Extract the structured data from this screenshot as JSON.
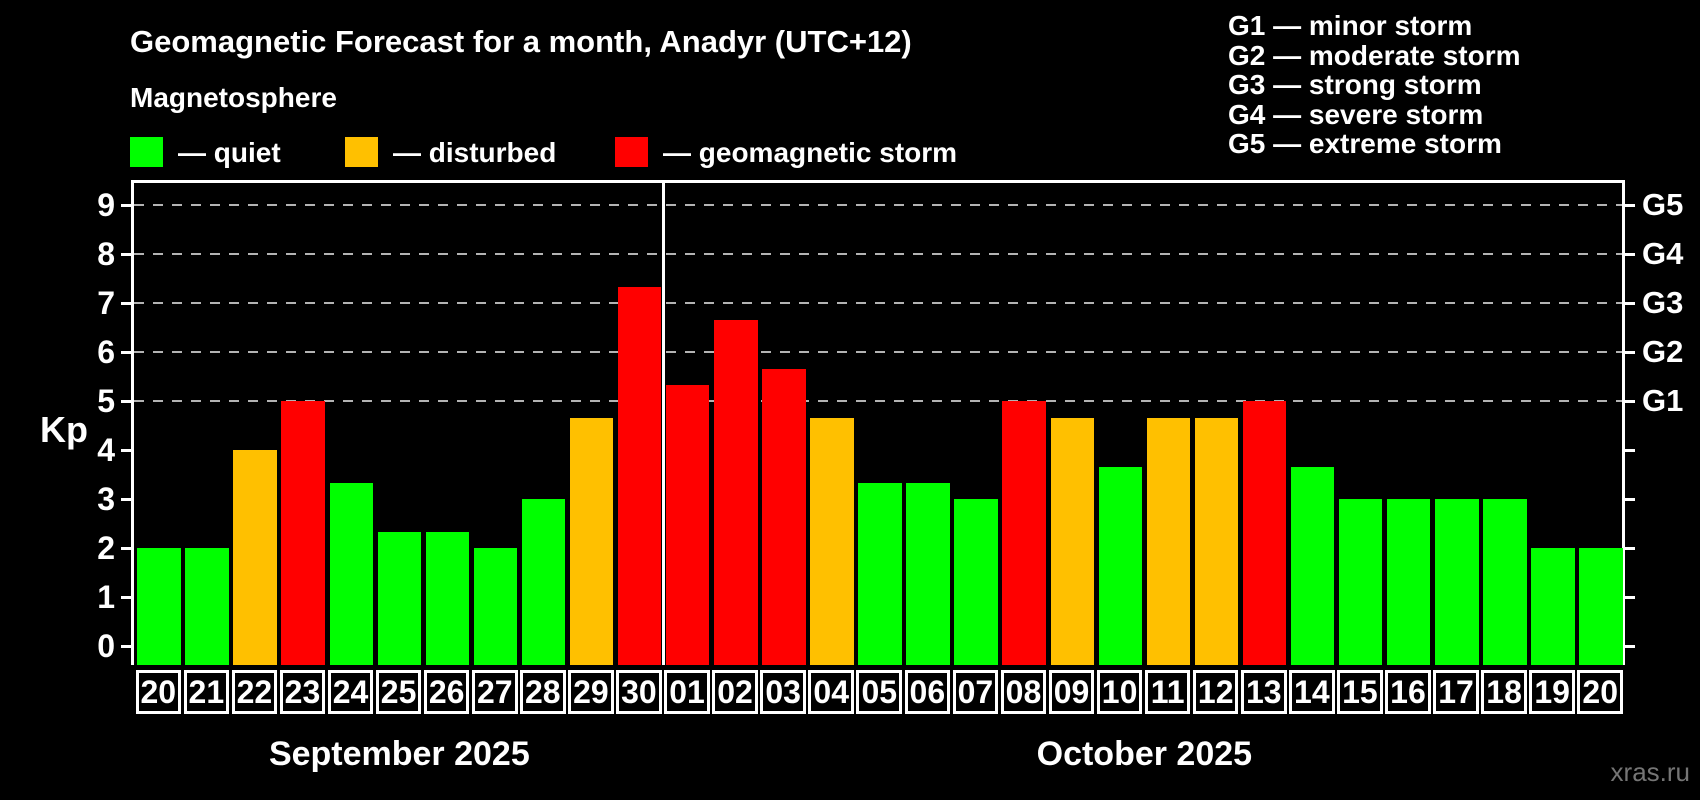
{
  "header": {
    "title": "Geomagnetic Forecast for a month, Anadyr (UTC+12)",
    "subtitle": "Magnetosphere",
    "watermark": "xras.ru"
  },
  "legend": {
    "items": [
      {
        "label": "— quiet",
        "status": "quiet",
        "color": "#00ff00"
      },
      {
        "label": "— disturbed",
        "status": "disturbed",
        "color": "#ffc000"
      },
      {
        "label": "— geomagnetic storm",
        "status": "storm",
        "color": "#ff0000"
      }
    ]
  },
  "storm_scale_legend": {
    "items": [
      {
        "text": "G1 — minor storm"
      },
      {
        "text": "G2 — moderate storm"
      },
      {
        "text": "G3 — strong storm"
      },
      {
        "text": "G4 — severe storm"
      },
      {
        "text": "G5 — extreme storm"
      }
    ]
  },
  "chart_data": {
    "type": "bar",
    "ylabel": "Kp",
    "ylim": [
      -0.38,
      9.46
    ],
    "yticks": [
      0,
      1,
      2,
      3,
      4,
      5,
      6,
      7,
      8,
      9
    ],
    "gridlines_at": [
      5,
      6,
      7,
      8,
      9
    ],
    "grid": "dashed horizontal at storm levels only",
    "legend_position": "top",
    "right_axis_labels": [
      {
        "label": "G1",
        "kp": 5
      },
      {
        "label": "G2",
        "kp": 6
      },
      {
        "label": "G3",
        "kp": 7
      },
      {
        "label": "G4",
        "kp": 8
      },
      {
        "label": "G5",
        "kp": 9
      }
    ],
    "status_colors": {
      "quiet": "#00ff00",
      "disturbed": "#ffc000",
      "storm": "#ff0000"
    },
    "gridline_color": "#b3b3b3",
    "months": [
      {
        "label": "September 2025",
        "short": "sep",
        "days": 11
      },
      {
        "label": "October 2025",
        "short": "oct",
        "days": 20
      }
    ],
    "bars": [
      {
        "day": "20",
        "kp": 2.0,
        "status": "quiet"
      },
      {
        "day": "21",
        "kp": 2.0,
        "status": "quiet"
      },
      {
        "day": "22",
        "kp": 4.0,
        "status": "disturbed"
      },
      {
        "day": "23",
        "kp": 5.0,
        "status": "storm"
      },
      {
        "day": "24",
        "kp": 3.33,
        "status": "quiet"
      },
      {
        "day": "25",
        "kp": 2.33,
        "status": "quiet"
      },
      {
        "day": "26",
        "kp": 2.33,
        "status": "quiet"
      },
      {
        "day": "27",
        "kp": 2.0,
        "status": "quiet"
      },
      {
        "day": "28",
        "kp": 3.0,
        "status": "quiet"
      },
      {
        "day": "29",
        "kp": 4.67,
        "status": "disturbed"
      },
      {
        "day": "30",
        "kp": 7.33,
        "status": "storm"
      },
      {
        "day": "01",
        "kp": 5.33,
        "status": "storm"
      },
      {
        "day": "02",
        "kp": 6.67,
        "status": "storm"
      },
      {
        "day": "03",
        "kp": 5.67,
        "status": "storm"
      },
      {
        "day": "04",
        "kp": 4.67,
        "status": "disturbed"
      },
      {
        "day": "05",
        "kp": 3.33,
        "status": "quiet"
      },
      {
        "day": "06",
        "kp": 3.33,
        "status": "quiet"
      },
      {
        "day": "07",
        "kp": 3.0,
        "status": "quiet"
      },
      {
        "day": "08",
        "kp": 5.0,
        "status": "storm"
      },
      {
        "day": "09",
        "kp": 4.67,
        "status": "disturbed"
      },
      {
        "day": "10",
        "kp": 3.67,
        "status": "quiet"
      },
      {
        "day": "11",
        "kp": 4.67,
        "status": "disturbed"
      },
      {
        "day": "12",
        "kp": 4.67,
        "status": "disturbed"
      },
      {
        "day": "13",
        "kp": 5.0,
        "status": "storm"
      },
      {
        "day": "14",
        "kp": 3.67,
        "status": "quiet"
      },
      {
        "day": "15",
        "kp": 3.0,
        "status": "quiet"
      },
      {
        "day": "16",
        "kp": 3.0,
        "status": "quiet"
      },
      {
        "day": "17",
        "kp": 3.0,
        "status": "quiet"
      },
      {
        "day": "18",
        "kp": 3.0,
        "status": "quiet"
      },
      {
        "day": "19",
        "kp": 2.0,
        "status": "quiet"
      },
      {
        "day": "20",
        "kp": 2.0,
        "status": "quiet"
      }
    ]
  }
}
